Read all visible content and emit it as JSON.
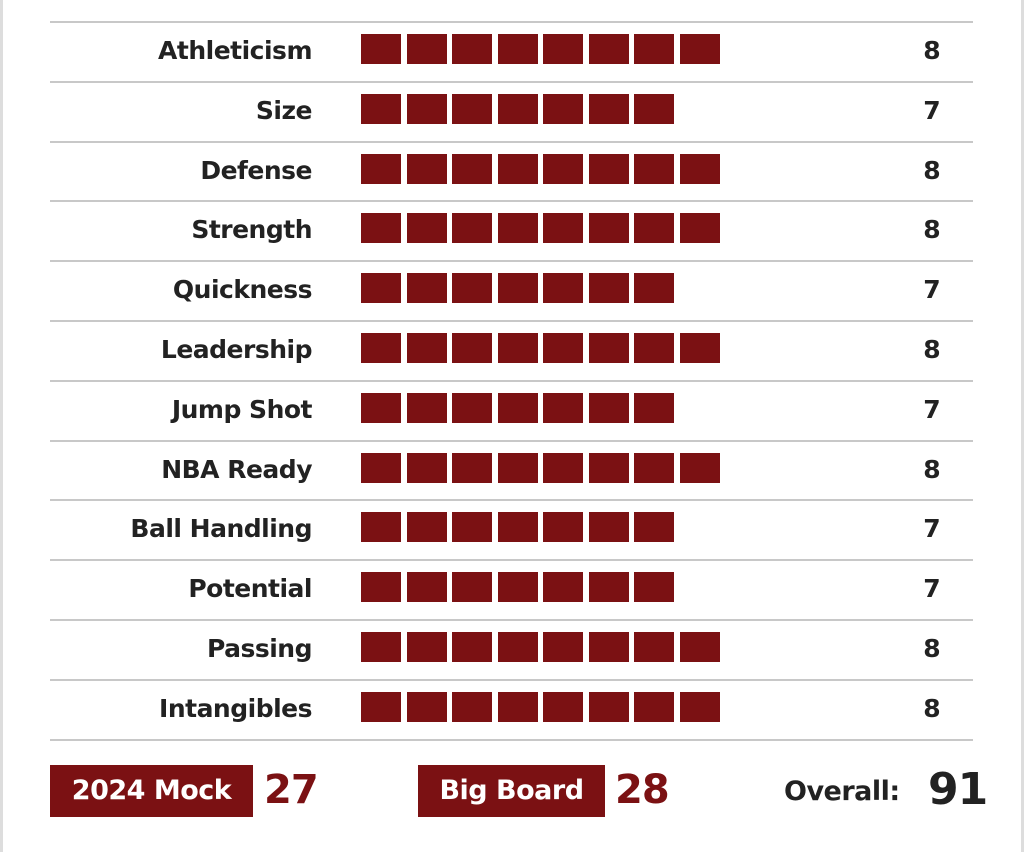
{
  "ratings": [
    {
      "label": "Athleticism",
      "value": 8
    },
    {
      "label": "Size",
      "value": 7
    },
    {
      "label": "Defense",
      "value": 8
    },
    {
      "label": "Strength",
      "value": 8
    },
    {
      "label": "Quickness",
      "value": 7
    },
    {
      "label": "Leadership",
      "value": 8
    },
    {
      "label": "Jump Shot",
      "value": 7
    },
    {
      "label": "NBA Ready",
      "value": 8
    },
    {
      "label": "Ball Handling",
      "value": 7
    },
    {
      "label": "Potential",
      "value": 7
    },
    {
      "label": "Passing",
      "value": 8
    },
    {
      "label": "Intangibles",
      "value": 8
    }
  ],
  "footer": {
    "mock_label": "2024 Mock",
    "mock_value": 27,
    "board_label": "Big Board",
    "board_value": 28,
    "overall_label": "Overall:",
    "overall_value": 91
  }
}
